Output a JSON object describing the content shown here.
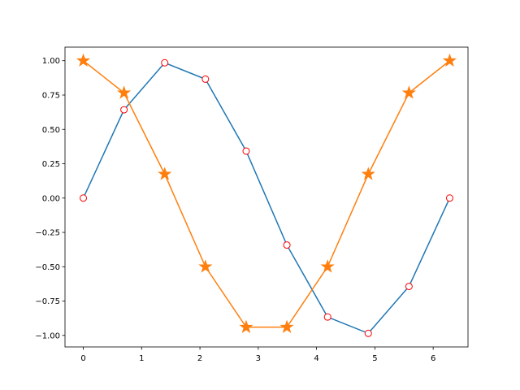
{
  "chart_data": {
    "type": "line",
    "x": [
      0,
      0.698,
      1.396,
      2.094,
      2.793,
      3.491,
      4.189,
      4.887,
      5.585,
      6.283
    ],
    "series": [
      {
        "color": "#1f77b4",
        "marker": "circle",
        "marker_fill": "#ffffff",
        "marker_edge": "#ff0000",
        "values": [
          0,
          0.643,
          0.985,
          0.866,
          0.342,
          -0.342,
          -0.866,
          -0.985,
          -0.643,
          0
        ]
      },
      {
        "color": "#ff7f0e",
        "marker": "star",
        "marker_fill": "#ff7f0e",
        "marker_edge": "#ff7f0e",
        "values": [
          1,
          0.766,
          0.174,
          -0.5,
          -0.94,
          -0.94,
          -0.5,
          0.174,
          0.766,
          1
        ]
      }
    ],
    "xlim": [
      -0.314,
      6.597
    ],
    "ylim": [
      -1.084,
      1.099
    ],
    "xticks": [
      0,
      1,
      2,
      3,
      4,
      5,
      6
    ],
    "yticks": [
      {
        "value": -1,
        "label": "−1.00"
      },
      {
        "value": -0.75,
        "label": "−0.75"
      },
      {
        "value": -0.5,
        "label": "−0.50"
      },
      {
        "value": -0.25,
        "label": "−0.25"
      },
      {
        "value": 0,
        "label": "0.00"
      },
      {
        "value": 0.25,
        "label": "0.25"
      },
      {
        "value": 0.5,
        "label": "0.50"
      },
      {
        "value": 0.75,
        "label": "0.75"
      },
      {
        "value": 1,
        "label": "1.00"
      }
    ],
    "grid": false
  }
}
